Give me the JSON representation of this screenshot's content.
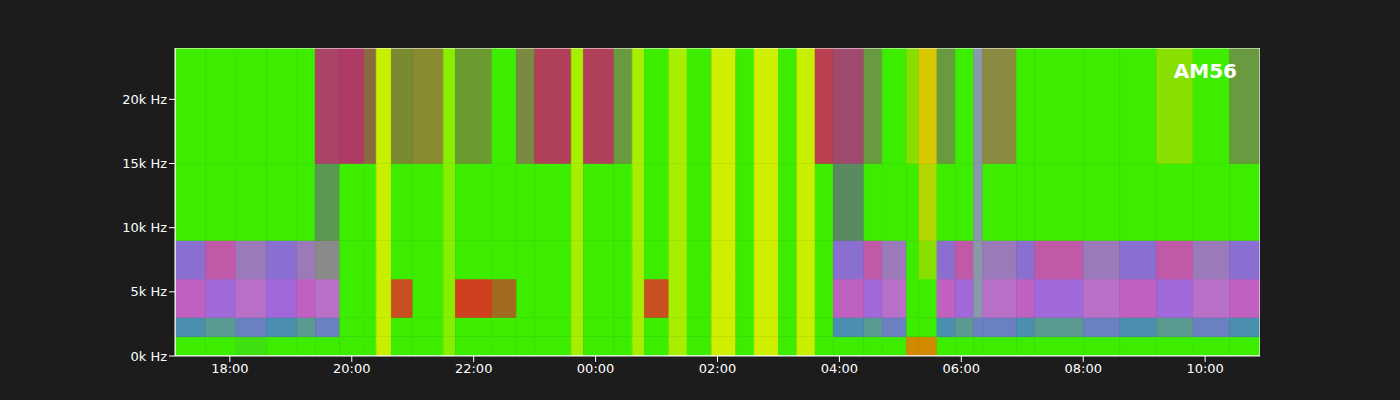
{
  "chart_data": {
    "type": "heatmap",
    "title": "AM56",
    "xlim": [
      17.1,
      34.9
    ],
    "xticks": [
      {
        "value": 18,
        "label": "18:00"
      },
      {
        "value": 20,
        "label": "20:00"
      },
      {
        "value": 22,
        "label": "22:00"
      },
      {
        "value": 24,
        "label": "00:00"
      },
      {
        "value": 26,
        "label": "02:00"
      },
      {
        "value": 28,
        "label": "04:00"
      },
      {
        "value": 30,
        "label": "06:00"
      },
      {
        "value": 32,
        "label": "08:00"
      },
      {
        "value": 34,
        "label": "10:00"
      }
    ],
    "ylim": [
      0,
      24000
    ],
    "yticks": [
      {
        "value": 0,
        "label": "0k Hz"
      },
      {
        "value": 5000,
        "label": "5k Hz"
      },
      {
        "value": 10000,
        "label": "10k Hz"
      },
      {
        "value": 15000,
        "label": "15k Hz"
      },
      {
        "value": 20000,
        "label": "20k Hz"
      }
    ],
    "y_edges": [
      0,
      1500,
      3000,
      6000,
      9000,
      15000,
      24000
    ],
    "cells": [
      {
        "x": [
          17.1,
          17.6
        ],
        "colors": [
          "#3ded00",
          "#4a8fb0",
          "#c060c0",
          "#8a6fd0",
          "#3ded00",
          "#3ded00"
        ]
      },
      {
        "x": [
          17.6,
          18.1
        ],
        "colors": [
          "#3ded00",
          "#5a9a90",
          "#a068d8",
          "#c05aa8",
          "#3ded00",
          "#3ded00"
        ]
      },
      {
        "x": [
          18.1,
          18.6
        ],
        "colors": [
          "#40e010",
          "#6a80c0",
          "#b870c8",
          "#9a7ab8",
          "#3ded00",
          "#3ded00"
        ]
      },
      {
        "x": [
          18.6,
          19.1
        ],
        "colors": [
          "#3ded00",
          "#4a8fb0",
          "#a068d8",
          "#8a6fd0",
          "#3ded00",
          "#3ded00"
        ]
      },
      {
        "x": [
          19.1,
          19.4
        ],
        "colors": [
          "#3ded00",
          "#5a9a90",
          "#c060c0",
          "#9a7ab8",
          "#3ded00",
          "#3ded00"
        ]
      },
      {
        "x": [
          19.4,
          19.8
        ],
        "colors": [
          "#3ded00",
          "#6a80c0",
          "#b870c8",
          "#8a8a8a",
          "#5a9a50",
          "#aa4466"
        ]
      },
      {
        "x": [
          19.8,
          20.2
        ],
        "colors": [
          "#3ded00",
          "#3ded00",
          "#3ded00",
          "#3ded00",
          "#3ded00",
          "#b03a66"
        ]
      },
      {
        "x": [
          20.2,
          20.4
        ],
        "colors": [
          "#3ded00",
          "#3ded00",
          "#3ded00",
          "#3ded00",
          "#3ded00",
          "#8a6a40"
        ]
      },
      {
        "x": [
          20.4,
          20.65
        ],
        "colors": [
          "#c8ee00",
          "#c8ee00",
          "#c8ee00",
          "#c8ee00",
          "#c8ee00",
          "#c8ee00"
        ]
      },
      {
        "x": [
          20.65,
          21.0
        ],
        "colors": [
          "#3ded00",
          "#3ded00",
          "#c85020",
          "#3ded00",
          "#3ded00",
          "#7a8a30"
        ]
      },
      {
        "x": [
          21.0,
          21.5
        ],
        "colors": [
          "#3ded00",
          "#3ded00",
          "#3ded00",
          "#3ded00",
          "#3ded00",
          "#8a8a30"
        ]
      },
      {
        "x": [
          21.5,
          21.7
        ],
        "colors": [
          "#88ee00",
          "#88ee00",
          "#88ee00",
          "#88ee00",
          "#88ee00",
          "#88ee00"
        ]
      },
      {
        "x": [
          21.7,
          22.3
        ],
        "colors": [
          "#3ded00",
          "#3ded00",
          "#d04020",
          "#3ded00",
          "#3ded00",
          "#6a9a30"
        ]
      },
      {
        "x": [
          22.3,
          22.7
        ],
        "colors": [
          "#3ded00",
          "#3ded00",
          "#a06a20",
          "#3ded00",
          "#3ded00",
          "#3ded00"
        ]
      },
      {
        "x": [
          22.7,
          23.0
        ],
        "colors": [
          "#3ded00",
          "#3ded00",
          "#3ded00",
          "#3ded00",
          "#3ded00",
          "#7a8a40"
        ]
      },
      {
        "x": [
          23.0,
          23.6
        ],
        "colors": [
          "#3ded00",
          "#3ded00",
          "#3ded00",
          "#3ded00",
          "#3ded00",
          "#b0405a"
        ]
      },
      {
        "x": [
          23.6,
          23.8
        ],
        "colors": [
          "#a8ee00",
          "#a8ee00",
          "#a8ee00",
          "#a8ee00",
          "#a8ee00",
          "#a8ee00"
        ]
      },
      {
        "x": [
          23.8,
          24.3
        ],
        "colors": [
          "#3ded00",
          "#3ded00",
          "#3ded00",
          "#3ded00",
          "#3ded00",
          "#b0405a"
        ]
      },
      {
        "x": [
          24.3,
          24.6
        ],
        "colors": [
          "#3ded00",
          "#3ded00",
          "#3ded00",
          "#3ded00",
          "#3ded00",
          "#6a9a40"
        ]
      },
      {
        "x": [
          24.6,
          24.8
        ],
        "colors": [
          "#a8ee00",
          "#a8ee00",
          "#a8ee00",
          "#a8ee00",
          "#a8ee00",
          "#a8ee00"
        ]
      },
      {
        "x": [
          24.8,
          25.2
        ],
        "colors": [
          "#3ded00",
          "#3ded00",
          "#c85020",
          "#3ded00",
          "#3ded00",
          "#3ded00"
        ]
      },
      {
        "x": [
          25.2,
          25.5
        ],
        "colors": [
          "#a8ee00",
          "#a8ee00",
          "#a8ee00",
          "#a8ee00",
          "#a8ee00",
          "#a8ee00"
        ]
      },
      {
        "x": [
          25.5,
          25.9
        ],
        "colors": [
          "#3ded00",
          "#3ded00",
          "#3ded00",
          "#3ded00",
          "#3ded00",
          "#3ded00"
        ]
      },
      {
        "x": [
          25.9,
          26.3
        ],
        "colors": [
          "#d0ee00",
          "#d0ee00",
          "#d0ee00",
          "#d0ee00",
          "#d0ee00",
          "#d0ee00"
        ]
      },
      {
        "x": [
          26.3,
          26.6
        ],
        "colors": [
          "#3ded00",
          "#3ded00",
          "#3ded00",
          "#3ded00",
          "#3ded00",
          "#3ded00"
        ]
      },
      {
        "x": [
          26.6,
          27.0
        ],
        "colors": [
          "#d0ee00",
          "#d0ee00",
          "#d0ee00",
          "#d0ee00",
          "#d0ee00",
          "#d0ee00"
        ]
      },
      {
        "x": [
          27.0,
          27.3
        ],
        "colors": [
          "#3ded00",
          "#3ded00",
          "#3ded00",
          "#3ded00",
          "#3ded00",
          "#3ded00"
        ]
      },
      {
        "x": [
          27.3,
          27.6
        ],
        "colors": [
          "#c8ee00",
          "#c8ee00",
          "#c8ee00",
          "#c8ee00",
          "#c8ee00",
          "#c8ee00"
        ]
      },
      {
        "x": [
          27.6,
          27.9
        ],
        "colors": [
          "#3ded00",
          "#3ded00",
          "#3ded00",
          "#3ded00",
          "#3ded00",
          "#b84050"
        ]
      },
      {
        "x": [
          27.9,
          28.4
        ],
        "colors": [
          "#3ded00",
          "#4a8fb0",
          "#c060c0",
          "#8a6fd0",
          "#5a8a60",
          "#a04a70"
        ]
      },
      {
        "x": [
          28.4,
          28.7
        ],
        "colors": [
          "#3ded00",
          "#5a9a90",
          "#a068d8",
          "#c05aa8",
          "#3ded00",
          "#6a9a40"
        ]
      },
      {
        "x": [
          28.7,
          29.1
        ],
        "colors": [
          "#3ded00",
          "#6a80c0",
          "#b870c8",
          "#9a7ab8",
          "#3ded00",
          "#3ded00"
        ]
      },
      {
        "x": [
          29.1,
          29.3
        ],
        "colors": [
          "#d08a00",
          "#3ded00",
          "#3ded00",
          "#3ded00",
          "#3ded00",
          "#88e000"
        ]
      },
      {
        "x": [
          29.3,
          29.6
        ],
        "colors": [
          "#d08a00",
          "#3ded00",
          "#3ded00",
          "#88e000",
          "#b0d800",
          "#d8c800"
        ]
      },
      {
        "x": [
          29.6,
          29.9
        ],
        "colors": [
          "#3ded00",
          "#4a8fb0",
          "#c060c0",
          "#8a6fd0",
          "#3ded00",
          "#6a9a40"
        ]
      },
      {
        "x": [
          29.9,
          30.2
        ],
        "colors": [
          "#3ded00",
          "#5a9a90",
          "#a068d8",
          "#c05aa8",
          "#3ded00",
          "#3ded00"
        ]
      },
      {
        "x": [
          30.2,
          30.35
        ],
        "colors": [
          "#3ded00",
          "#6a80c0",
          "#8899aa",
          "#8899aa",
          "#8899aa",
          "#8899aa"
        ]
      },
      {
        "x": [
          30.35,
          30.9
        ],
        "colors": [
          "#3ded00",
          "#6a80c0",
          "#b870c8",
          "#9a7ab8",
          "#3ded00",
          "#8a8a40"
        ]
      },
      {
        "x": [
          30.9,
          31.2
        ],
        "colors": [
          "#3ded00",
          "#4a8fb0",
          "#c060c0",
          "#8a6fd0",
          "#3ded00",
          "#3ded00"
        ]
      },
      {
        "x": [
          31.2,
          32.0
        ],
        "colors": [
          "#3ded00",
          "#5a9a90",
          "#a068d8",
          "#c05aa8",
          "#3ded00",
          "#3ded00"
        ]
      },
      {
        "x": [
          32.0,
          32.6
        ],
        "colors": [
          "#3ded00",
          "#6a80c0",
          "#b870c8",
          "#9a7ab8",
          "#3ded00",
          "#3ded00"
        ]
      },
      {
        "x": [
          32.6,
          33.2
        ],
        "colors": [
          "#3ded00",
          "#4a8fb0",
          "#c060c0",
          "#8a6fd0",
          "#3ded00",
          "#3ded00"
        ]
      },
      {
        "x": [
          33.2,
          33.8
        ],
        "colors": [
          "#3ded00",
          "#5a9a90",
          "#a068d8",
          "#c05aa8",
          "#3ded00",
          "#88e000"
        ]
      },
      {
        "x": [
          33.8,
          34.4
        ],
        "colors": [
          "#3ded00",
          "#6a80c0",
          "#b870c8",
          "#9a7ab8",
          "#3ded00",
          "#3ded00"
        ]
      },
      {
        "x": [
          34.4,
          34.9
        ],
        "colors": [
          "#3ded00",
          "#4a8fb0",
          "#c060c0",
          "#8a6fd0",
          "#3ded00",
          "#6a9a40"
        ]
      }
    ]
  }
}
